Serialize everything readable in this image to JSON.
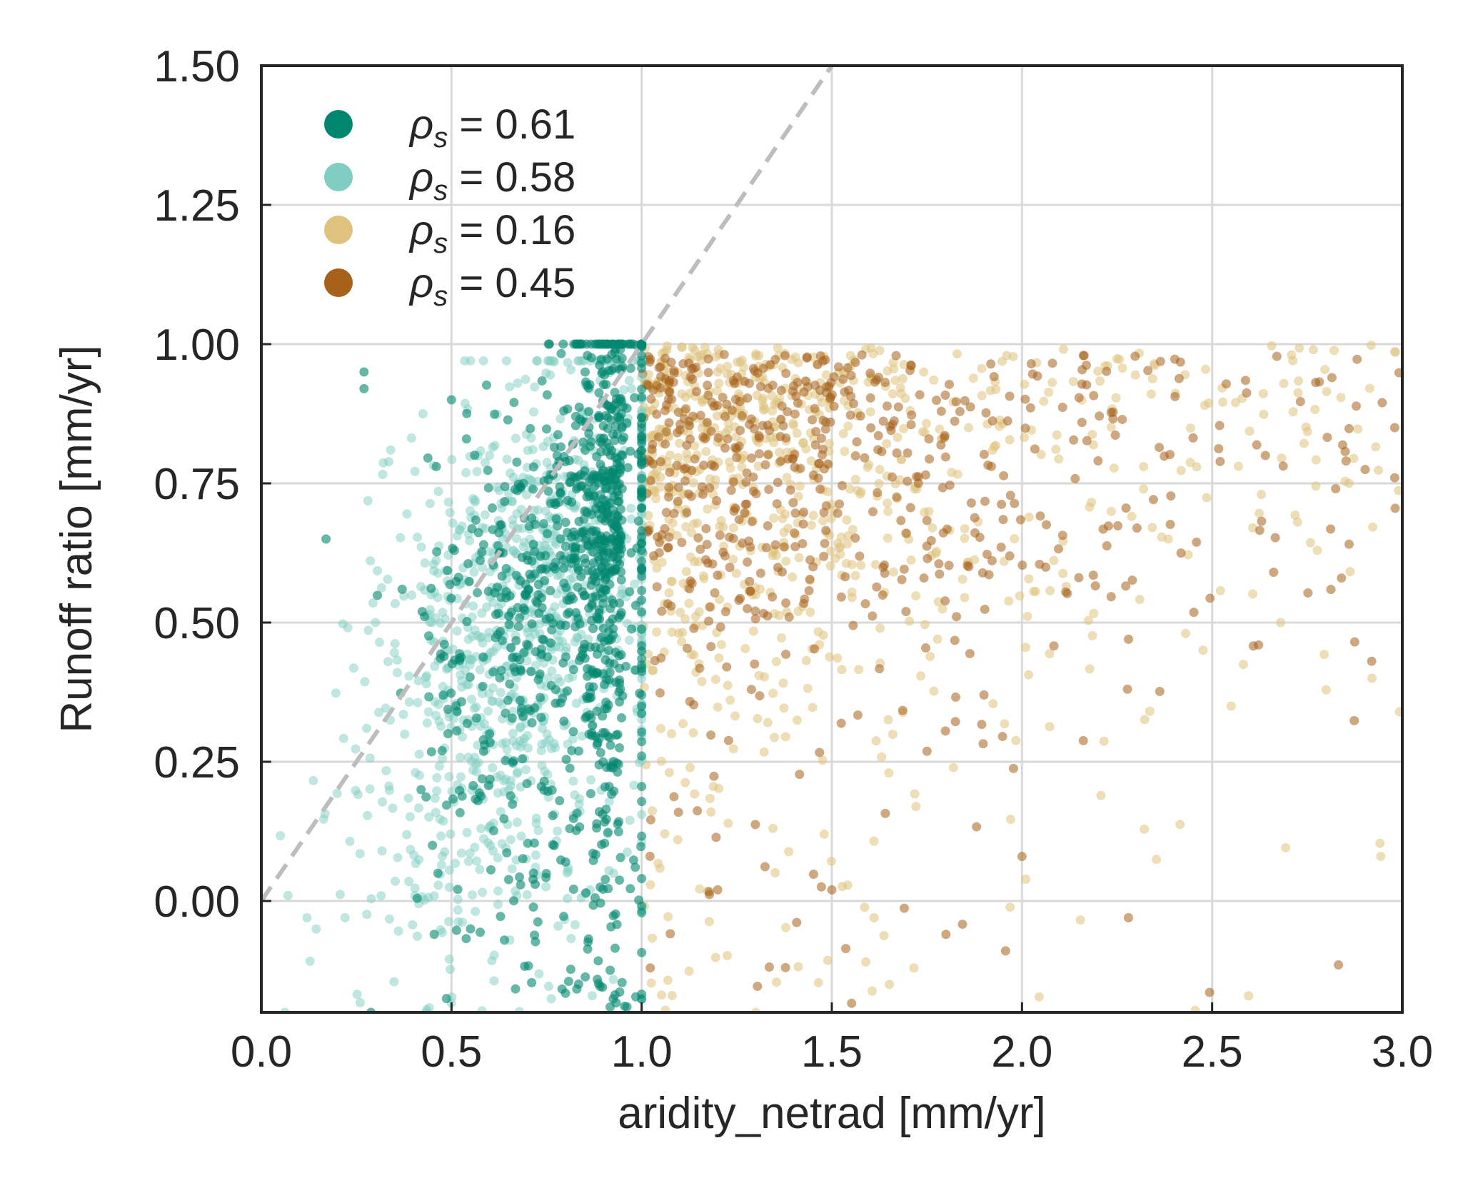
{
  "chart_data": {
    "type": "scatter",
    "xlabel": "aridity_netrad [mm/yr]",
    "ylabel": "Runoff ratio [mm/yr]",
    "xlim": [
      0.0,
      3.0
    ],
    "ylim": [
      -0.2,
      1.5
    ],
    "xticks": [
      "0.0",
      "0.5",
      "1.0",
      "1.5",
      "2.0",
      "2.5",
      "3.0"
    ],
    "yticks": [
      "0.00",
      "0.25",
      "0.50",
      "0.75",
      "1.00",
      "1.25",
      "1.50"
    ],
    "grid": true,
    "legend_placement": "top-left",
    "reference_line": {
      "style": "dashed",
      "color": "#bdbdbd",
      "x": [
        0.0,
        1.5
      ],
      "y": [
        0.0,
        1.5
      ]
    },
    "series": [
      {
        "name": "ρs = 0.61",
        "legend_symbol": "ρ",
        "legend_subscript": "s",
        "legend_value": " = 0.61",
        "color": "#01876f",
        "alpha": 0.6,
        "x_range": [
          0.15,
          1.0
        ],
        "y_range": [
          -0.2,
          1.0
        ],
        "n_points": 950,
        "sample_points": [
          [
            0.27,
            0.95
          ],
          [
            0.27,
            0.92
          ],
          [
            0.17,
            0.65
          ],
          [
            0.5,
            0.9
          ],
          [
            0.9,
            0.65
          ],
          [
            0.85,
            0.7
          ],
          [
            0.95,
            0.8
          ],
          [
            0.6,
            0.3
          ],
          [
            0.45,
            0.1
          ],
          [
            0.55,
            -0.05
          ],
          [
            0.72,
            0.03
          ],
          [
            0.8,
            0.07
          ],
          [
            0.42,
            0.2
          ]
        ]
      },
      {
        "name": "ρs = 0.58",
        "legend_symbol": "ρ",
        "legend_subscript": "s",
        "legend_value": " = 0.58",
        "color": "#80cdc1",
        "alpha": 0.5,
        "x_range": [
          0.05,
          1.0
        ],
        "y_range": [
          -0.2,
          0.97
        ],
        "n_points": 950,
        "sample_points": [
          [
            0.07,
            0.01
          ],
          [
            0.22,
            -0.03
          ],
          [
            0.12,
            -0.03
          ],
          [
            0.55,
            0.97
          ],
          [
            0.34,
            0.81
          ],
          [
            0.68,
            0.42
          ],
          [
            0.75,
            0.65
          ],
          [
            0.3,
            0.5
          ],
          [
            0.6,
            0.8
          ],
          [
            0.87,
            -0.17
          ]
        ]
      },
      {
        "name": "ρs = 0.16",
        "legend_symbol": "ρ",
        "legend_subscript": "s",
        "legend_value": " = 0.16",
        "color": "#dfc27d",
        "alpha": 0.55,
        "x_range": [
          1.0,
          3.0
        ],
        "y_range": [
          -0.2,
          1.0
        ],
        "n_points": 800,
        "sample_points": [
          [
            2.92,
            0.4
          ],
          [
            2.68,
            0.5
          ],
          [
            1.3,
            -0.2
          ],
          [
            1.65,
            0.23
          ],
          [
            1.48,
            0.12
          ],
          [
            2.55,
            0.35
          ],
          [
            2.86,
            0.75
          ],
          [
            1.2,
            0.95
          ],
          [
            1.3,
            0.55
          ]
        ]
      },
      {
        "name": "ρs = 0.45",
        "legend_symbol": "ρ",
        "legend_subscript": "s",
        "legend_value": " = 0.45",
        "color": "#a6611a",
        "alpha": 0.55,
        "x_range": [
          1.0,
          3.0
        ],
        "y_range": [
          -0.2,
          1.0
        ],
        "n_points": 600,
        "sample_points": [
          [
            1.8,
            -0.06
          ],
          [
            2.28,
            -0.03
          ],
          [
            2.0,
            0.08
          ],
          [
            2.28,
            0.47
          ],
          [
            2.64,
            0.8
          ],
          [
            2.98,
            0.76
          ],
          [
            2.98,
            0.85
          ],
          [
            2.84,
            0.58
          ],
          [
            1.2,
            0.02
          ],
          [
            1.5,
            0.02
          ],
          [
            1.9,
            0.37
          ]
        ]
      }
    ]
  }
}
